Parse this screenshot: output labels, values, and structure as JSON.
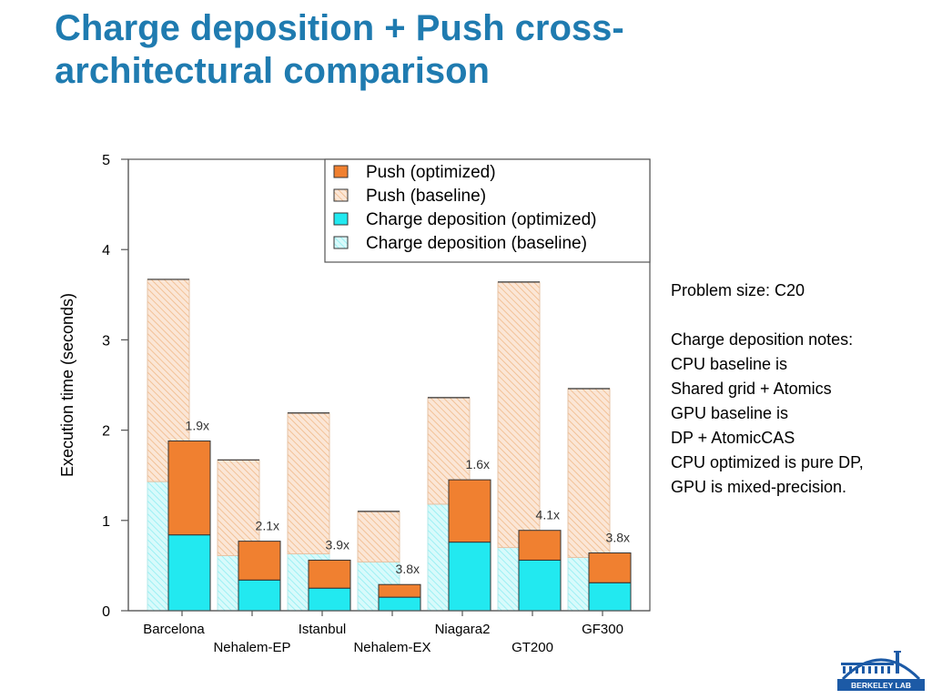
{
  "slide": {
    "title_line1": "Charge deposition + Push cross-",
    "title_line2": "architectural comparison"
  },
  "notes": {
    "problem_size": "Problem size: C20",
    "heading": "Charge deposition notes:",
    "lines": [
      "CPU baseline is",
      "Shared grid + Atomics",
      "GPU baseline is",
      "DP + AtomicCAS",
      "CPU optimized is pure DP,",
      "GPU is mixed-precision."
    ]
  },
  "logo": {
    "text": "BERKELEY LAB"
  },
  "colors": {
    "title": "#1f7bb0",
    "push": "#f08030",
    "push_baseline_hatch": "#f3c9a3",
    "charge": "#22e9f0",
    "charge_baseline": "#c6f6f8",
    "logo_blue": "#1c5aa6"
  },
  "chart_data": {
    "type": "bar",
    "ylabel": "Execution time (seconds)",
    "xlabel": "",
    "ylim": [
      0,
      5
    ],
    "yticks": [
      0,
      1,
      2,
      3,
      4,
      5
    ],
    "categories": [
      "Barcelona",
      "Nehalem-EP",
      "Istanbul",
      "Nehalem-EX",
      "Niagara2",
      "GT200",
      "GF300"
    ],
    "legend_position": "top-right",
    "series": [
      {
        "name": "Push (optimized)",
        "values": [
          1.04,
          0.43,
          0.31,
          0.14,
          0.69,
          0.33,
          0.33
        ]
      },
      {
        "name": "Push (baseline)",
        "values": [
          2.24,
          1.06,
          1.56,
          0.56,
          1.18,
          2.94,
          1.87
        ]
      },
      {
        "name": "Charge deposition (optimized)",
        "values": [
          0.84,
          0.34,
          0.25,
          0.15,
          0.76,
          0.56,
          0.31
        ]
      },
      {
        "name": "Charge deposition (baseline)",
        "values": [
          1.43,
          0.61,
          0.63,
          0.54,
          1.18,
          0.7,
          0.59
        ]
      }
    ],
    "speedup_labels": [
      "1.9x",
      "2.1x",
      "3.9x",
      "3.8x",
      "1.6x",
      "4.1x",
      "3.8x"
    ]
  }
}
